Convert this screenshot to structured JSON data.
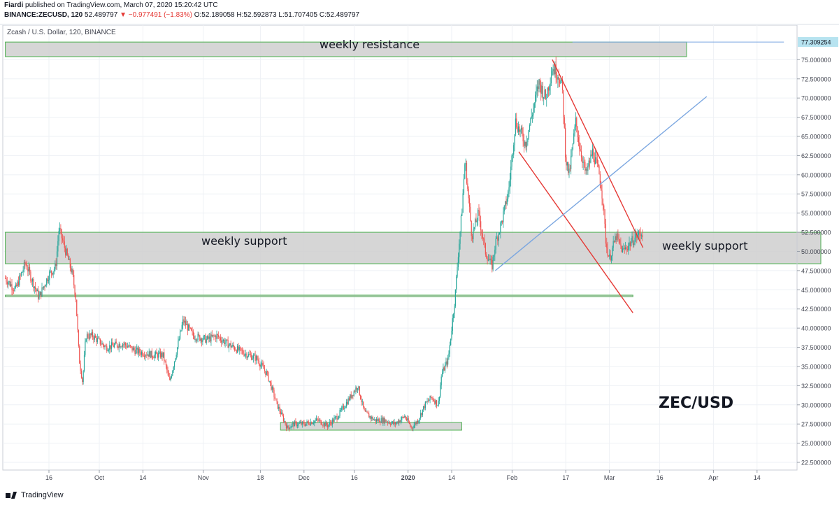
{
  "header": {
    "author": "Fiardi",
    "published": "published on TradingView.com, March 07, 2020 15:20:42 UTC",
    "symbol_interval": "BINANCE:ZECUSD, 120",
    "last": "52.489797",
    "change": "▼ −0.977491 (−1.83%)",
    "open": "O:52.189058",
    "high": "H:52.592873",
    "low": "L:51.707405",
    "close": "C:52.489797"
  },
  "chart_title": "Zcash / U.S. Dollar, 120, BINANCE",
  "footer": {
    "brand": "TradingView"
  },
  "colors": {
    "up": "#26a69a",
    "down": "#ef5350",
    "zone_fill": "#cfcfcf",
    "zone_border": "#4caf50",
    "channel": "#e53935",
    "trendline": "#7aa6e0",
    "last_price_tag": "#b7e3f0",
    "grid": "#eef1f5"
  },
  "chart_data": {
    "type": "candlestick",
    "symbol": "ZEC/USD",
    "ylim": [
      21.5,
      79.5
    ],
    "y_ticks": [
      "22.500000",
      "25.000000",
      "27.500000",
      "30.000000",
      "32.500000",
      "35.000000",
      "37.500000",
      "40.000000",
      "42.500000",
      "45.000000",
      "47.500000",
      "50.000000",
      "52.500000",
      "55.000000",
      "57.500000",
      "60.000000",
      "62.500000",
      "65.000000",
      "67.500000",
      "70.000000",
      "72.500000",
      "75.000000"
    ],
    "x_ticks": [
      {
        "label": "16",
        "day": 0
      },
      {
        "label": "Oct",
        "day": 15
      },
      {
        "label": "14",
        "day": 28
      },
      {
        "label": "Nov",
        "day": 46
      },
      {
        "label": "18",
        "day": 63
      },
      {
        "label": "Dec",
        "day": 76
      },
      {
        "label": "16",
        "day": 91
      },
      {
        "label": "2020",
        "day": 107,
        "bold": true
      },
      {
        "label": "14",
        "day": 120
      },
      {
        "label": "Feb",
        "day": 138
      },
      {
        "label": "17",
        "day": 154
      },
      {
        "label": "Mar",
        "day": 167
      },
      {
        "label": "16",
        "day": 182
      },
      {
        "label": "Apr",
        "day": 198
      },
      {
        "label": "14",
        "day": 211
      }
    ],
    "price_path": [
      [
        -13,
        46.5
      ],
      [
        -10,
        45
      ],
      [
        -7,
        48.5
      ],
      [
        -3,
        44
      ],
      [
        0,
        47
      ],
      [
        2,
        48
      ],
      [
        3,
        53
      ],
      [
        5,
        50
      ],
      [
        7,
        47
      ],
      [
        8,
        44
      ],
      [
        9,
        36
      ],
      [
        10,
        33
      ],
      [
        11,
        39
      ],
      [
        13,
        39
      ],
      [
        17,
        37.5
      ],
      [
        22,
        38
      ],
      [
        26,
        37
      ],
      [
        31,
        36.5
      ],
      [
        34,
        36.5
      ],
      [
        36,
        33
      ],
      [
        38,
        37
      ],
      [
        40,
        41
      ],
      [
        43,
        39
      ],
      [
        47,
        38.5
      ],
      [
        50,
        39
      ],
      [
        53,
        38
      ],
      [
        57,
        37
      ],
      [
        62,
        36
      ],
      [
        65,
        34
      ],
      [
        68,
        30
      ],
      [
        71,
        27
      ],
      [
        73,
        27.5
      ],
      [
        76,
        27.5
      ],
      [
        80,
        28
      ],
      [
        83,
        27.3
      ],
      [
        86,
        28.5
      ],
      [
        89,
        30.5
      ],
      [
        92,
        32.5
      ],
      [
        94,
        29
      ],
      [
        97,
        28
      ],
      [
        100,
        28
      ],
      [
        103,
        27.5
      ],
      [
        106,
        28.5
      ],
      [
        108,
        27
      ],
      [
        110,
        28
      ],
      [
        112,
        30
      ],
      [
        114,
        31
      ],
      [
        116,
        30
      ],
      [
        117,
        34
      ],
      [
        119,
        36
      ],
      [
        120,
        40
      ],
      [
        121,
        44
      ],
      [
        122,
        50
      ],
      [
        123,
        55
      ],
      [
        124,
        62
      ],
      [
        126,
        52
      ],
      [
        128,
        55
      ],
      [
        130,
        50
      ],
      [
        132,
        48
      ],
      [
        133,
        51
      ],
      [
        135,
        54
      ],
      [
        137,
        58
      ],
      [
        139,
        67
      ],
      [
        141,
        65
      ],
      [
        142,
        64
      ],
      [
        144,
        68
      ],
      [
        146,
        72
      ],
      [
        148,
        70
      ],
      [
        150,
        74
      ],
      [
        152,
        73
      ],
      [
        153,
        71
      ],
      [
        154,
        62
      ],
      [
        155,
        60
      ],
      [
        157,
        67
      ],
      [
        158,
        64
      ],
      [
        160,
        60
      ],
      [
        162,
        63
      ],
      [
        164,
        60
      ],
      [
        165,
        57
      ],
      [
        166,
        51
      ],
      [
        167,
        49
      ],
      [
        169,
        52
      ],
      [
        171,
        50
      ],
      [
        173,
        51
      ],
      [
        175,
        52
      ],
      [
        177,
        52.5
      ]
    ],
    "zones": [
      {
        "name": "weekly resistance",
        "y_low": 75.4,
        "y_high": 77.3,
        "x_start": -13,
        "x_end": 190
      },
      {
        "name": "weekly support",
        "y_low": 48.4,
        "y_high": 52.5,
        "x_start": -13,
        "x_end": 230
      },
      {
        "name": "",
        "y_low": 44.1,
        "y_high": 44.3,
        "x_start": -13,
        "x_end": 174
      },
      {
        "name": "",
        "y_low": 26.7,
        "y_high": 27.7,
        "x_start": 69,
        "x_end": 123
      }
    ],
    "trendlines": [
      {
        "kind": "channel-upper",
        "from": [
          150,
          75
        ],
        "to": [
          177,
          50.5
        ]
      },
      {
        "kind": "channel-lower",
        "from": [
          140,
          63
        ],
        "to": [
          174,
          42
        ]
      },
      {
        "kind": "ascending",
        "from": [
          133,
          47.5
        ],
        "to": [
          196,
          70.2
        ]
      },
      {
        "kind": "price-line",
        "from": [
          156,
          77.3
        ],
        "to": [
          219,
          77.3
        ]
      }
    ],
    "last_price_label": "77.309254",
    "annotations": [
      "weekly resistance",
      "weekly support",
      "weekly support",
      "ZEC/USD"
    ]
  }
}
